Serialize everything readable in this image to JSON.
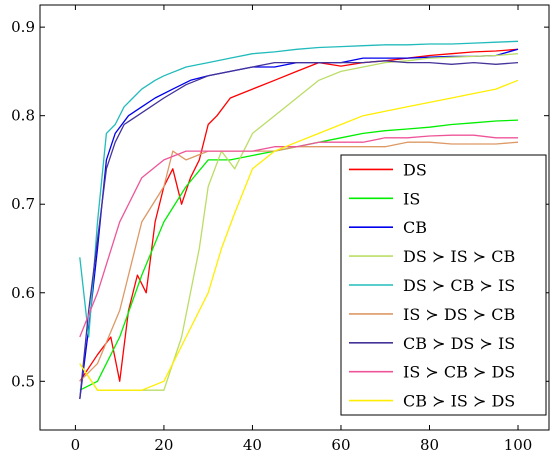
{
  "chart_data": {
    "type": "line",
    "title": "",
    "xlabel": "",
    "ylabel": "",
    "xlim": [
      -8,
      107
    ],
    "ylim": [
      0.445,
      0.925
    ],
    "x_ticks": [
      0,
      20,
      40,
      60,
      80,
      100
    ],
    "x_tick_labels": [
      "0",
      "20",
      "40",
      "60",
      "80",
      "100"
    ],
    "y_ticks": [
      0.5,
      0.6,
      0.7,
      0.8,
      0.9
    ],
    "y_tick_labels": [
      "0.5",
      "0.6",
      "0.7",
      "0.8",
      "0.9"
    ],
    "grid": false,
    "legend_position": "bottom-right",
    "series": [
      {
        "name": "DS",
        "color": "#ff0000",
        "points": [
          [
            1,
            0.5
          ],
          [
            5,
            0.53
          ],
          [
            8,
            0.55
          ],
          [
            10,
            0.5
          ],
          [
            12,
            0.58
          ],
          [
            14,
            0.62
          ],
          [
            16,
            0.6
          ],
          [
            18,
            0.68
          ],
          [
            20,
            0.72
          ],
          [
            22,
            0.74
          ],
          [
            24,
            0.7
          ],
          [
            26,
            0.73
          ],
          [
            28,
            0.75
          ],
          [
            30,
            0.79
          ],
          [
            32,
            0.8
          ],
          [
            35,
            0.82
          ],
          [
            40,
            0.83
          ],
          [
            45,
            0.84
          ],
          [
            50,
            0.85
          ],
          [
            55,
            0.86
          ],
          [
            60,
            0.856
          ],
          [
            65,
            0.86
          ],
          [
            70,
            0.862
          ],
          [
            75,
            0.865
          ],
          [
            80,
            0.868
          ],
          [
            85,
            0.87
          ],
          [
            90,
            0.872
          ],
          [
            95,
            0.873
          ],
          [
            100,
            0.875
          ]
        ]
      },
      {
        "name": "IS",
        "color": "#00ee00",
        "points": [
          [
            1,
            0.49
          ],
          [
            5,
            0.5
          ],
          [
            10,
            0.55
          ],
          [
            15,
            0.62
          ],
          [
            20,
            0.68
          ],
          [
            25,
            0.72
          ],
          [
            30,
            0.75
          ],
          [
            35,
            0.75
          ],
          [
            40,
            0.755
          ],
          [
            45,
            0.76
          ],
          [
            50,
            0.765
          ],
          [
            55,
            0.77
          ],
          [
            60,
            0.775
          ],
          [
            65,
            0.78
          ],
          [
            70,
            0.783
          ],
          [
            75,
            0.785
          ],
          [
            80,
            0.787
          ],
          [
            85,
            0.79
          ],
          [
            90,
            0.792
          ],
          [
            95,
            0.794
          ],
          [
            100,
            0.795
          ]
        ]
      },
      {
        "name": "CB",
        "color": "#0000ee",
        "points": [
          [
            1,
            0.48
          ],
          [
            3,
            0.56
          ],
          [
            5,
            0.65
          ],
          [
            7,
            0.75
          ],
          [
            9,
            0.78
          ],
          [
            12,
            0.8
          ],
          [
            15,
            0.81
          ],
          [
            18,
            0.82
          ],
          [
            22,
            0.83
          ],
          [
            26,
            0.84
          ],
          [
            30,
            0.845
          ],
          [
            35,
            0.85
          ],
          [
            40,
            0.855
          ],
          [
            45,
            0.855
          ],
          [
            50,
            0.86
          ],
          [
            55,
            0.86
          ],
          [
            60,
            0.86
          ],
          [
            65,
            0.865
          ],
          [
            70,
            0.865
          ],
          [
            75,
            0.865
          ],
          [
            80,
            0.866
          ],
          [
            85,
            0.867
          ],
          [
            90,
            0.867
          ],
          [
            95,
            0.868
          ],
          [
            100,
            0.875
          ]
        ]
      },
      {
        "name": "DS ≻ IS ≻ CB",
        "color": "#bbdd66",
        "points": [
          [
            1,
            0.52
          ],
          [
            5,
            0.49
          ],
          [
            10,
            0.49
          ],
          [
            15,
            0.49
          ],
          [
            20,
            0.49
          ],
          [
            24,
            0.55
          ],
          [
            28,
            0.65
          ],
          [
            30,
            0.72
          ],
          [
            33,
            0.76
          ],
          [
            36,
            0.74
          ],
          [
            40,
            0.78
          ],
          [
            45,
            0.8
          ],
          [
            50,
            0.82
          ],
          [
            55,
            0.84
          ],
          [
            60,
            0.85
          ],
          [
            65,
            0.855
          ],
          [
            70,
            0.86
          ],
          [
            75,
            0.862
          ],
          [
            80,
            0.865
          ],
          [
            85,
            0.866
          ],
          [
            90,
            0.867
          ],
          [
            95,
            0.868
          ],
          [
            100,
            0.87
          ]
        ]
      },
      {
        "name": "DS ≻ CB ≻ IS",
        "color": "#22bbbb",
        "points": [
          [
            1,
            0.64
          ],
          [
            3,
            0.55
          ],
          [
            5,
            0.68
          ],
          [
            7,
            0.78
          ],
          [
            9,
            0.79
          ],
          [
            11,
            0.81
          ],
          [
            13,
            0.82
          ],
          [
            15,
            0.83
          ],
          [
            18,
            0.84
          ],
          [
            20,
            0.845
          ],
          [
            25,
            0.855
          ],
          [
            30,
            0.86
          ],
          [
            35,
            0.865
          ],
          [
            40,
            0.87
          ],
          [
            45,
            0.872
          ],
          [
            50,
            0.875
          ],
          [
            55,
            0.877
          ],
          [
            60,
            0.878
          ],
          [
            65,
            0.879
          ],
          [
            70,
            0.88
          ],
          [
            75,
            0.88
          ],
          [
            80,
            0.881
          ],
          [
            85,
            0.881
          ],
          [
            90,
            0.882
          ],
          [
            95,
            0.883
          ],
          [
            100,
            0.884
          ]
        ]
      },
      {
        "name": "IS ≻ DS ≻ CB",
        "color": "#dd9966",
        "points": [
          [
            1,
            0.5
          ],
          [
            5,
            0.52
          ],
          [
            10,
            0.58
          ],
          [
            15,
            0.68
          ],
          [
            20,
            0.72
          ],
          [
            22,
            0.76
          ],
          [
            25,
            0.75
          ],
          [
            30,
            0.76
          ],
          [
            35,
            0.76
          ],
          [
            40,
            0.76
          ],
          [
            45,
            0.76
          ],
          [
            50,
            0.765
          ],
          [
            55,
            0.765
          ],
          [
            60,
            0.765
          ],
          [
            65,
            0.765
          ],
          [
            70,
            0.765
          ],
          [
            75,
            0.77
          ],
          [
            80,
            0.77
          ],
          [
            85,
            0.768
          ],
          [
            90,
            0.768
          ],
          [
            95,
            0.768
          ],
          [
            100,
            0.77
          ]
        ]
      },
      {
        "name": "CB ≻ DS ≻ IS",
        "color": "#443399",
        "points": [
          [
            1,
            0.48
          ],
          [
            3,
            0.58
          ],
          [
            5,
            0.66
          ],
          [
            7,
            0.74
          ],
          [
            9,
            0.77
          ],
          [
            11,
            0.79
          ],
          [
            14,
            0.8
          ],
          [
            17,
            0.81
          ],
          [
            20,
            0.82
          ],
          [
            25,
            0.835
          ],
          [
            30,
            0.845
          ],
          [
            35,
            0.85
          ],
          [
            40,
            0.855
          ],
          [
            45,
            0.86
          ],
          [
            50,
            0.86
          ],
          [
            55,
            0.86
          ],
          [
            60,
            0.86
          ],
          [
            65,
            0.86
          ],
          [
            70,
            0.862
          ],
          [
            75,
            0.86
          ],
          [
            80,
            0.86
          ],
          [
            85,
            0.858
          ],
          [
            90,
            0.86
          ],
          [
            95,
            0.858
          ],
          [
            100,
            0.86
          ]
        ]
      },
      {
        "name": "IS ≻ CB ≻ DS",
        "color": "#ee5599",
        "points": [
          [
            1,
            0.55
          ],
          [
            5,
            0.6
          ],
          [
            10,
            0.68
          ],
          [
            15,
            0.73
          ],
          [
            20,
            0.75
          ],
          [
            25,
            0.76
          ],
          [
            30,
            0.76
          ],
          [
            35,
            0.76
          ],
          [
            40,
            0.76
          ],
          [
            45,
            0.765
          ],
          [
            50,
            0.765
          ],
          [
            55,
            0.77
          ],
          [
            60,
            0.77
          ],
          [
            65,
            0.77
          ],
          [
            70,
            0.775
          ],
          [
            75,
            0.775
          ],
          [
            80,
            0.777
          ],
          [
            85,
            0.778
          ],
          [
            90,
            0.778
          ],
          [
            95,
            0.775
          ],
          [
            100,
            0.775
          ]
        ]
      },
      {
        "name": "CB ≻ IS ≻ DS",
        "color": "#ffee00",
        "points": [
          [
            1,
            0.52
          ],
          [
            5,
            0.49
          ],
          [
            10,
            0.49
          ],
          [
            15,
            0.49
          ],
          [
            20,
            0.5
          ],
          [
            25,
            0.55
          ],
          [
            30,
            0.6
          ],
          [
            33,
            0.65
          ],
          [
            36,
            0.69
          ],
          [
            40,
            0.74
          ],
          [
            45,
            0.76
          ],
          [
            50,
            0.77
          ],
          [
            55,
            0.78
          ],
          [
            60,
            0.79
          ],
          [
            65,
            0.8
          ],
          [
            70,
            0.805
          ],
          [
            75,
            0.81
          ],
          [
            80,
            0.815
          ],
          [
            85,
            0.82
          ],
          [
            90,
            0.825
          ],
          [
            95,
            0.83
          ],
          [
            100,
            0.84
          ]
        ]
      }
    ]
  }
}
